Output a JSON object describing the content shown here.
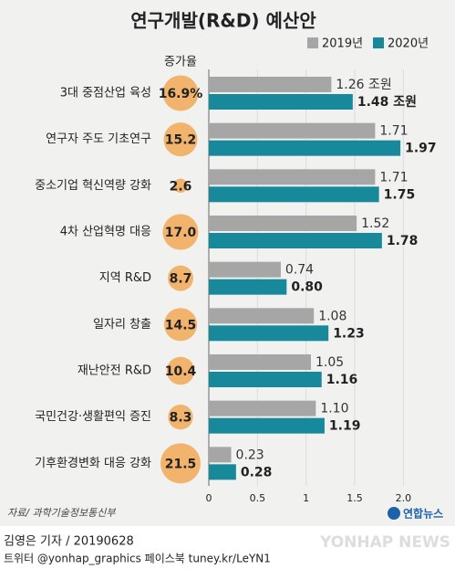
{
  "chart_data": {
    "type": "bar",
    "title": "연구개발(R&D) 예산안",
    "categories": [
      "3대 중점산업 육성",
      "연구자 주도 기초연구",
      "중소기업 혁신역량 강화",
      "4차 산업혁명 대응",
      "지역 R&D",
      "일자리 창출",
      "재난안전 R&D",
      "국민건강·생활편익 증진",
      "기후환경변화 대응 강화"
    ],
    "series": [
      {
        "name": "2019년",
        "color": "#a6a6a6",
        "values": [
          1.26,
          1.71,
          1.71,
          1.52,
          0.74,
          1.08,
          1.05,
          1.1,
          0.23
        ],
        "value_labels": [
          "1.26 조원",
          "1.71",
          "1.71",
          "1.52",
          "0.74",
          "1.08",
          "1.05",
          "1.10",
          "0.23"
        ]
      },
      {
        "name": "2020년",
        "color": "#17899a",
        "values": [
          1.48,
          1.97,
          1.75,
          1.78,
          0.8,
          1.23,
          1.16,
          1.19,
          0.28
        ],
        "value_labels": [
          "1.48 조원",
          "1.97",
          "1.75",
          "1.78",
          "0.80",
          "1.23",
          "1.16",
          "1.19",
          "0.28"
        ]
      }
    ],
    "growth": {
      "title": "증가율",
      "color": "#f2b46c",
      "values": [
        16.9,
        15.2,
        2.6,
        17.0,
        8.7,
        14.5,
        10.4,
        8.3,
        21.5
      ],
      "value_labels": [
        "16.9%",
        "15.2",
        "2.6",
        "17.0",
        "8.7",
        "14.5",
        "10.4",
        "8.3",
        "21.5"
      ]
    },
    "xlim": [
      0,
      2.1
    ],
    "xticks": [
      0,
      0.5,
      1,
      1.5,
      {
        "value": 2,
        "label": "2.0"
      }
    ],
    "grid": true,
    "source": "자료/ 과학기술정보통신부"
  },
  "footer": {
    "byline": "김영은 기자 / 20190628",
    "social": "트위터 @yonhap_graphics  페이스북 tuney.kr/LeYN1",
    "logo": "연합뉴스",
    "logo_en": "YONHAP NEWS"
  }
}
